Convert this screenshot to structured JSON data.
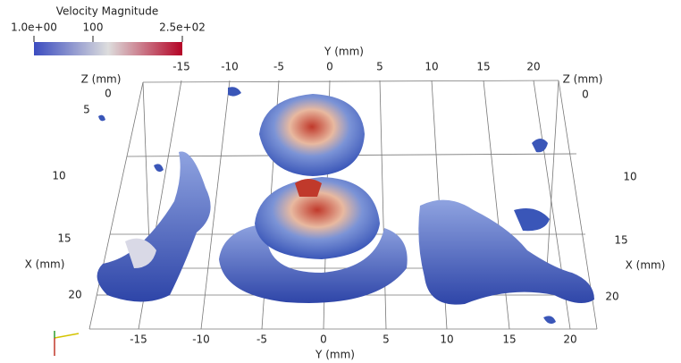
{
  "colorbar": {
    "title": "Velocity Magnitude",
    "labels": [
      "1.0e+00",
      "100",
      "2.5e+02"
    ]
  },
  "axes": {
    "y_top": {
      "title": "Y (mm)",
      "ticks": [
        "-15",
        "-10",
        "-5",
        "0",
        "5",
        "10",
        "15",
        "20"
      ]
    },
    "y_bottom": {
      "title": "Y (mm)",
      "ticks": [
        "-15",
        "-10",
        "-5",
        "0",
        "5",
        "10",
        "15",
        "20"
      ]
    },
    "z_left": {
      "title": "Z (mm)",
      "ticks": [
        "0",
        "5"
      ]
    },
    "z_right": {
      "title": "Z (mm)",
      "ticks": [
        "0"
      ]
    },
    "x_left": {
      "title": "X (mm)",
      "ticks": [
        "10",
        "15",
        "20"
      ]
    },
    "x_right": {
      "title": "X (mm)",
      "ticks": [
        "10",
        "15",
        "20"
      ]
    }
  }
}
